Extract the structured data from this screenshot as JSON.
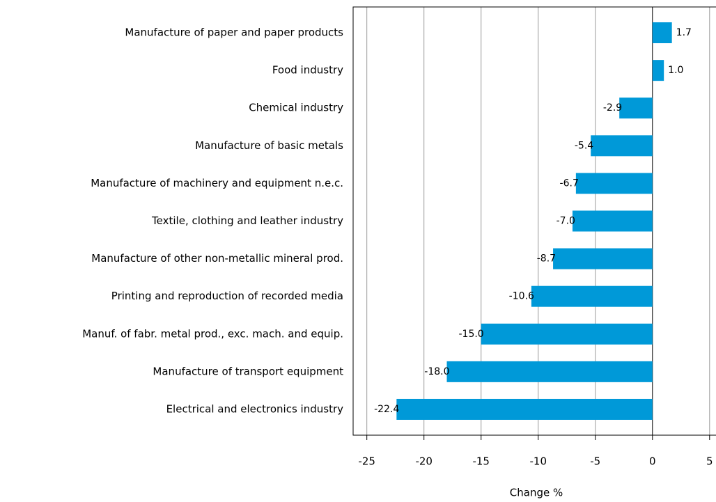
{
  "chart_data": {
    "type": "barh",
    "categories": [
      "Manufacture of paper and paper products",
      "Food industry",
      "Chemical industry",
      "Manufacture of basic metals",
      "Manufacture of machinery and equipment n.e.c.",
      "Textile, clothing and leather industry",
      "Manufacture of other non-metallic mineral prod.",
      "Printing and reproduction of recorded media",
      "Manuf. of fabr. metal prod., exc. mach. and equip.",
      "Manufacture of transport equipment",
      "Electrical and electronics industry"
    ],
    "values": [
      1.7,
      1.0,
      -2.9,
      -5.4,
      -6.7,
      -7.0,
      -8.7,
      -10.6,
      -15.0,
      -18.0,
      -22.4
    ],
    "value_labels": [
      "1.7",
      "1.0",
      "-2.9",
      "-5.4",
      "-6.7",
      "-7.0",
      "-8.7",
      "-10.6",
      "-15.0",
      "-18.0",
      "-22.4"
    ],
    "color": "#0099d8",
    "xlabel": "Change %",
    "xlim": [
      -26.2,
      5.5
    ],
    "xticks": [
      -25,
      -20,
      -15,
      -10,
      -5,
      0,
      5
    ],
    "grid": true
  }
}
